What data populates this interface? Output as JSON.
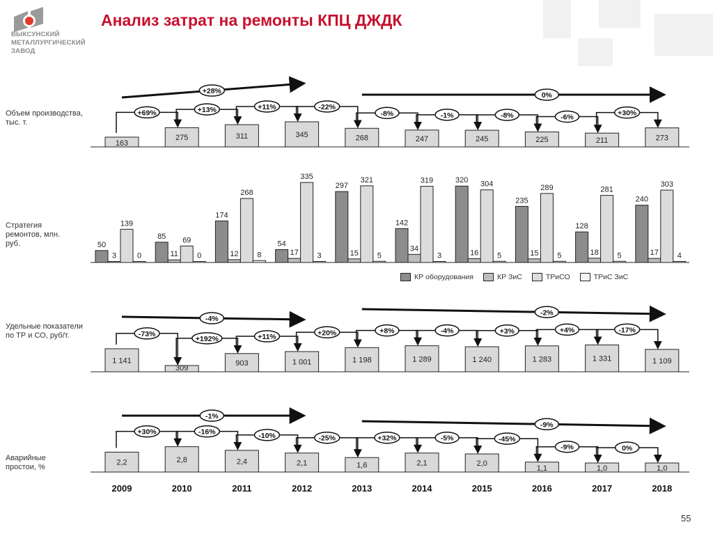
{
  "header": {
    "title": "Анализ затрат на ремонты КПЦ ДЖДК",
    "logo_text": [
      "ВЫКСУНСКИЙ",
      "МЕТАЛЛУРГИЧЕСКИЙ",
      "ЗАВОД"
    ],
    "page_number": "55"
  },
  "sections": {
    "production": "Объем производства, тыс. т.",
    "strategy": "Стратегия ремонтов, млн. руб.",
    "specific": "Удельные показатели по ТР и СО, руб/т.",
    "downtime": "Аварийные простои, %"
  },
  "legend": [
    "КР оборудования",
    "КР ЗиС",
    "ТРиСО",
    "ТРиС ЗиС"
  ],
  "colors": {
    "title": "#c8102e",
    "kr_equipment": "#8c8c8c",
    "kr_zis": "#bdbdbd",
    "triso": "#dcdcdc",
    "tris_zis": "#f4f4f4",
    "box": "#d9d9d9"
  },
  "chart_data": [
    {
      "type": "bar",
      "section": "production",
      "categories": [
        "2009",
        "2010",
        "2011",
        "2012",
        "2013",
        "2014",
        "2015",
        "2016",
        "2017",
        "2018"
      ],
      "values": [
        163,
        275,
        311,
        345,
        268,
        247,
        245,
        225,
        211,
        273
      ],
      "labels": [
        "163",
        "275",
        "311",
        "345",
        "268",
        "247",
        "245",
        "225",
        "211",
        "273"
      ],
      "changes": [
        "+69%",
        "+13%",
        "+11%",
        "-22%",
        "-8%",
        "-1%",
        "-8%",
        "-6%",
        "+30%"
      ],
      "trends": [
        {
          "from": "2009",
          "to": "2012",
          "label": "+28%"
        },
        {
          "from": "2013",
          "to": "2018",
          "label": "0%"
        }
      ]
    },
    {
      "type": "bar",
      "section": "strategy",
      "categories": [
        "2009",
        "2010",
        "2011",
        "2012",
        "2013",
        "2014",
        "2015",
        "2016",
        "2017",
        "2018"
      ],
      "series": [
        {
          "name": "КР оборудования",
          "values": [
            50,
            85,
            174,
            54,
            297,
            142,
            320,
            235,
            128,
            240
          ]
        },
        {
          "name": "КР ЗиС",
          "values": [
            3,
            11,
            12,
            17,
            15,
            34,
            16,
            15,
            18,
            17
          ]
        },
        {
          "name": "ТРиСО",
          "values": [
            139,
            69,
            268,
            335,
            321,
            319,
            304,
            289,
            281,
            303
          ]
        },
        {
          "name": "ТРиС ЗиС",
          "values": [
            0,
            0,
            8,
            3,
            5,
            3,
            5,
            5,
            5,
            4
          ]
        }
      ],
      "legend_position": "bottom-right"
    },
    {
      "type": "bar",
      "section": "specific",
      "categories": [
        "2009",
        "2010",
        "2011",
        "2012",
        "2013",
        "2014",
        "2015",
        "2016",
        "2017",
        "2018"
      ],
      "values": [
        1141,
        309,
        903,
        1001,
        1198,
        1289,
        1240,
        1283,
        1331,
        1109
      ],
      "labels": [
        "1 141",
        "309",
        "903",
        "1 001",
        "1 198",
        "1 289",
        "1 240",
        "1 283",
        "1 331",
        "1 109"
      ],
      "changes": [
        "-73%",
        "+192%",
        "+11%",
        "+20%",
        "+8%",
        "-4%",
        "+3%",
        "+4%",
        "-17%"
      ],
      "trends": [
        {
          "from": "2009",
          "to": "2012",
          "label": "-4%"
        },
        {
          "from": "2013",
          "to": "2018",
          "label": "-2%"
        }
      ]
    },
    {
      "type": "bar",
      "section": "downtime",
      "categories": [
        "2009",
        "2010",
        "2011",
        "2012",
        "2013",
        "2014",
        "2015",
        "2016",
        "2017",
        "2018"
      ],
      "values": [
        2.2,
        2.8,
        2.4,
        2.1,
        1.6,
        2.1,
        2.0,
        1.1,
        1.0,
        1.0
      ],
      "labels": [
        "2,2",
        "2,8",
        "2,4",
        "2,1",
        "1,6",
        "2,1",
        "2,0",
        "1,1",
        "1,0",
        "1,0"
      ],
      "changes": [
        "+30%",
        "-16%",
        "-10%",
        "-25%",
        "+32%",
        "-5%",
        "-45%",
        "-9%",
        "0%"
      ],
      "trends": [
        {
          "from": "2009",
          "to": "2012",
          "label": "-1%"
        },
        {
          "from": "2013",
          "to": "2018",
          "label": "-9%"
        }
      ]
    }
  ]
}
